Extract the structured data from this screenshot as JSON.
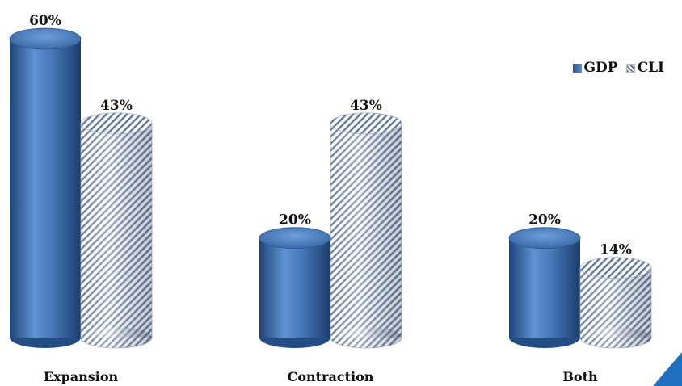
{
  "chart_data": {
    "type": "bar",
    "categories": [
      "Expansion",
      "Contraction",
      "Both"
    ],
    "series": [
      {
        "name": "GDP",
        "values": [
          60,
          20,
          20
        ],
        "labels": [
          "60%",
          "20%",
          "20%"
        ],
        "color": "#3f70b0"
      },
      {
        "name": "CLI",
        "values": [
          43,
          43,
          14
        ],
        "labels": [
          "43%",
          "43%",
          "14%"
        ],
        "color": "#8796ad",
        "pattern": "diagonal-hatch"
      }
    ],
    "ylim": [
      0,
      60
    ],
    "grid": false,
    "legend": "top-right",
    "style": "3d-cylinder"
  },
  "accent": {
    "corner_triangle": "#1f6fbf"
  }
}
